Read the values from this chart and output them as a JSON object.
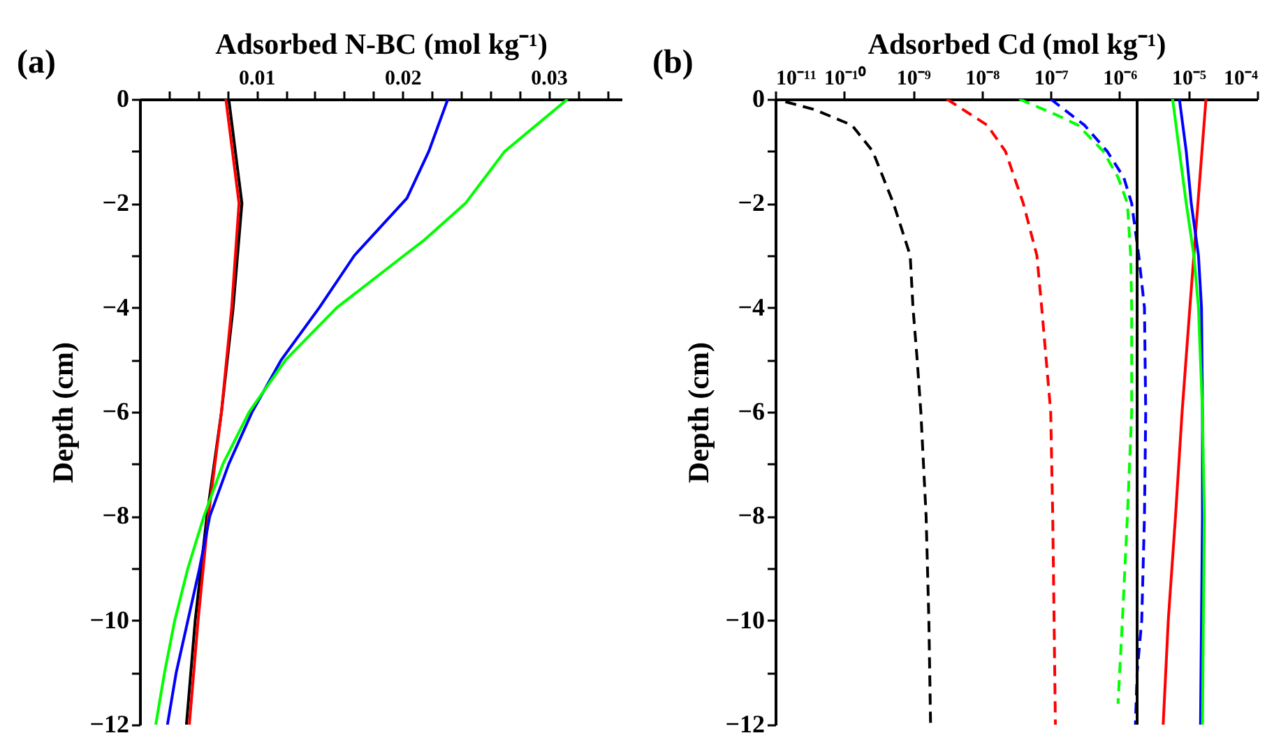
{
  "chart_data": [
    {
      "type": "line",
      "title": "(a)",
      "xlabel": "Adsorbed N-BC (mol kg⁻¹)",
      "ylabel": "Depth (cm)",
      "xlim": [
        0.002,
        0.035
      ],
      "ylim": [
        -12,
        0
      ],
      "xticks": [
        {
          "value": 0.004,
          "label": null
        },
        {
          "value": 0.006,
          "label": null
        },
        {
          "value": 0.008,
          "label": null
        },
        {
          "value": 0.01,
          "label": "0.01"
        },
        {
          "value": 0.012,
          "label": null
        },
        {
          "value": 0.014,
          "label": null
        },
        {
          "value": 0.016,
          "label": null
        },
        {
          "value": 0.018,
          "label": null
        },
        {
          "value": 0.02,
          "label": "0.02"
        },
        {
          "value": 0.022,
          "label": null
        },
        {
          "value": 0.024,
          "label": null
        },
        {
          "value": 0.026,
          "label": null
        },
        {
          "value": 0.028,
          "label": null
        },
        {
          "value": 0.03,
          "label": "0.03"
        },
        {
          "value": 0.032,
          "label": null
        },
        {
          "value": 0.034,
          "label": null
        }
      ],
      "yticks": [
        {
          "value": 0,
          "label": "0"
        },
        {
          "value": -1,
          "label": null
        },
        {
          "value": -2,
          "label": "−2"
        },
        {
          "value": -3,
          "label": null
        },
        {
          "value": -4,
          "label": "−4"
        },
        {
          "value": -5,
          "label": null
        },
        {
          "value": -6,
          "label": "−6"
        },
        {
          "value": -7,
          "label": null
        },
        {
          "value": -8,
          "label": "−8"
        },
        {
          "value": -9,
          "label": null
        },
        {
          "value": -10,
          "label": "−10"
        },
        {
          "value": -11,
          "label": null
        },
        {
          "value": -12,
          "label": "−12"
        }
      ],
      "grid": false,
      "series": [
        {
          "color": "#000000",
          "line_style": "solid",
          "x": [
            0.0081,
            0.009,
            0.0084,
            0.0076,
            0.0066,
            0.0058,
            0.0052
          ],
          "values": [
            0,
            -2,
            -4,
            -6,
            -8,
            -10,
            -12
          ]
        },
        {
          "color": "#ff0000",
          "line_style": "solid",
          "x": [
            0.0079,
            0.0088,
            0.0083,
            0.0076,
            0.0067,
            0.006,
            0.0054
          ],
          "values": [
            0,
            -2,
            -4,
            -6,
            -8,
            -10,
            -12
          ]
        },
        {
          "color": "#0000ff",
          "line_style": "solid",
          "x": [
            0.0231,
            0.0218,
            0.0203,
            0.0167,
            0.0143,
            0.0117,
            0.0097,
            0.0081,
            0.0068,
            0.0061,
            0.0053,
            0.0045,
            0.0039
          ],
          "values": [
            0,
            -1,
            -1.9,
            -3,
            -4,
            -5,
            -6,
            -7,
            -8,
            -9,
            -10,
            -11,
            -12
          ]
        },
        {
          "color": "#00ff00",
          "line_style": "solid",
          "x": [
            0.0313,
            0.027,
            0.0243,
            0.0215,
            0.0201,
            0.0155,
            0.012,
            0.0095,
            0.0077,
            0.0064,
            0.0053,
            0.0044,
            0.0037,
            0.0031
          ],
          "values": [
            0,
            -1,
            -2,
            -2.7,
            -3,
            -4,
            -5,
            -6,
            -7,
            -8,
            -9,
            -10,
            -11,
            -12
          ]
        }
      ]
    },
    {
      "type": "line",
      "title": "(b)",
      "xlabel": "Adsorbed Cd (mol kg⁻¹)",
      "ylabel": "Depth (cm)",
      "log": "x",
      "xlim": [
        1e-11,
        0.0001
      ],
      "ylim": [
        -12,
        0
      ],
      "xticks": [
        {
          "value": 1e-11,
          "label": "10⁻¹¹"
        },
        {
          "value": 1e-10,
          "label": "10⁻¹⁰"
        },
        {
          "value": 1e-09,
          "label": "10⁻⁹"
        },
        {
          "value": 1e-08,
          "label": "10⁻⁸"
        },
        {
          "value": 1e-07,
          "label": "10⁻⁷"
        },
        {
          "value": 1e-06,
          "label": "10⁻⁶"
        },
        {
          "value": 1e-05,
          "label": "10⁻⁵"
        },
        {
          "value": 0.0001,
          "label": "10⁻⁴"
        }
      ],
      "yticks": [
        {
          "value": 0,
          "label": "0"
        },
        {
          "value": -1,
          "label": null
        },
        {
          "value": -2,
          "label": "−2"
        },
        {
          "value": -3,
          "label": null
        },
        {
          "value": -4,
          "label": "−4"
        },
        {
          "value": -5,
          "label": null
        },
        {
          "value": -6,
          "label": "−6"
        },
        {
          "value": -7,
          "label": null
        },
        {
          "value": -8,
          "label": "−8"
        },
        {
          "value": -9,
          "label": null
        },
        {
          "value": -10,
          "label": "−10"
        },
        {
          "value": -11,
          "label": null
        },
        {
          "value": -12,
          "label": "−12"
        }
      ],
      "grid": false,
      "series": [
        {
          "color": "#000000",
          "line_style": "dashed",
          "x": [
            1.4e-11,
            3.7e-11,
            1.3e-10,
            2.6e-10,
            5.2e-10,
            9.1e-10,
            1e-09,
            1.15e-09,
            1.3e-09,
            1.55e-09,
            1.7e-09,
            1.8e-09
          ],
          "values": [
            -0.05,
            -0.2,
            -0.5,
            -1,
            -2,
            -3,
            -4,
            -5,
            -6,
            -8,
            -10,
            -12
          ]
        },
        {
          "color": "#ff0000",
          "line_style": "dashed",
          "x": [
            3.1e-09,
            1.2e-08,
            2.2e-08,
            4e-08,
            6.3e-08,
            7.4e-08,
            1e-07,
            1.07e-07,
            1.12e-07,
            1.17e-07
          ],
          "values": [
            0,
            -0.5,
            -1,
            -2,
            -3,
            -4,
            -6,
            -8,
            -10,
            -12
          ]
        },
        {
          "color": "#00ff00",
          "line_style": "dashed",
          "x": [
            3.5e-08,
            1.2e-07,
            2.5e-07,
            5.8e-07,
            9.5e-07,
            1.3e-06,
            1.45e-06,
            1.5e-06,
            1.5e-06,
            1.3e-06,
            1.1e-06,
            9.5e-07
          ],
          "values": [
            0,
            -0.3,
            -0.5,
            -1,
            -1.5,
            -2,
            -3,
            -4,
            -6,
            -8,
            -10,
            -11.6
          ]
        },
        {
          "color": "#0000ff",
          "line_style": "dashed",
          "x": [
            1e-07,
            3.1e-07,
            6.6e-07,
            1.15e-06,
            1.5e-06,
            1.9e-06,
            2.3e-06,
            2.4e-06,
            2.3e-06,
            2.1e-06,
            1.8e-06,
            1.7e-06
          ],
          "values": [
            0,
            -0.5,
            -1,
            -1.5,
            -2,
            -3,
            -4,
            -6,
            -8,
            -10,
            -11,
            -12
          ]
        },
        {
          "color": "#000000",
          "line_style": "solid",
          "x": [
            1.8e-06,
            1.8e-06
          ],
          "values": [
            0,
            -12
          ]
        },
        {
          "color": "#ff0000",
          "line_style": "solid",
          "x": [
            1.8e-05,
            1.05e-05,
            8.1e-06,
            6.5e-06,
            5.1e-06,
            4.3e-06
          ],
          "values": [
            0,
            -4,
            -6,
            -8,
            -10,
            -12
          ]
        },
        {
          "color": "#0000ff",
          "line_style": "solid",
          "x": [
            7.4e-06,
            9.3e-06,
            1.1e-05,
            1.4e-05,
            1.55e-05,
            1.6e-05,
            1.6e-05,
            1.5e-05
          ],
          "values": [
            0,
            -1,
            -2,
            -3,
            -4,
            -6,
            -8,
            -12
          ]
        },
        {
          "color": "#00ff00",
          "line_style": "solid",
          "x": [
            5.9e-06,
            7.4e-06,
            9.3e-06,
            1.2e-05,
            1.4e-05,
            1.6e-05,
            1.7e-05,
            1.6e-05
          ],
          "values": [
            0,
            -1,
            -2,
            -3,
            -4,
            -6,
            -8,
            -12
          ]
        }
      ]
    }
  ]
}
